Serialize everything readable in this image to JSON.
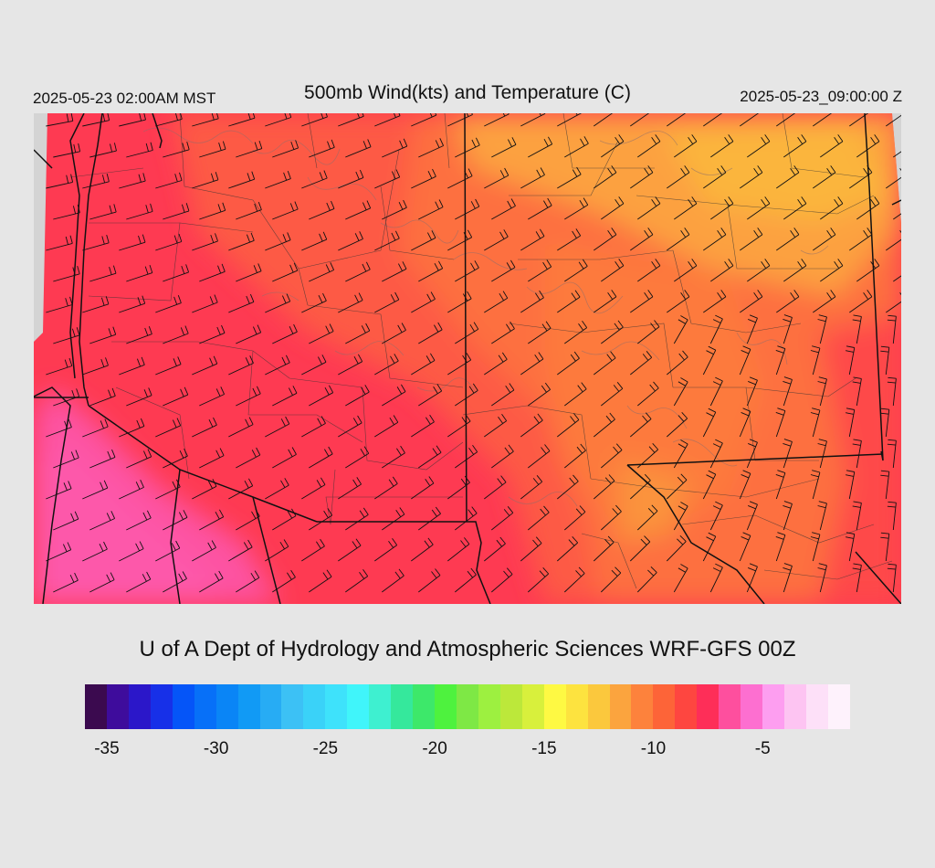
{
  "header": {
    "local_time": "2025-05-23 02:00AM MST",
    "title": "500mb Wind(kts) and Temperature (C)",
    "utc_time": "2025-05-23_09:00:00 Z"
  },
  "footer": {
    "credit": "U of A Dept of Hydrology and Atmospheric Sciences WRF-GFS 00Z"
  },
  "colorbar": {
    "colors": [
      "#3b0a4f",
      "#3e0c9c",
      "#2b17c9",
      "#1730e8",
      "#0555f8",
      "#0770f8",
      "#0a85f6",
      "#119af5",
      "#27acf4",
      "#3cc1f5",
      "#3ad2f8",
      "#3ee2fb",
      "#40f5fa",
      "#3ef0d0",
      "#35e89c",
      "#3de86a",
      "#4ef23e",
      "#7ee845",
      "#9df040",
      "#bce83a",
      "#d8f03c",
      "#fef943",
      "#fde33f",
      "#fbc83d",
      "#fba43e",
      "#fd823c",
      "#fd6438",
      "#fe4640",
      "#fe2e58",
      "#fe4f9e",
      "#fd6fd0",
      "#fd9ef0",
      "#fdc4f2",
      "#fde0f8",
      "#fef2fc"
    ],
    "labels": [
      "-35",
      "-30",
      "-25",
      "-20",
      "-15",
      "-10",
      "-5"
    ],
    "label_values": [
      -35,
      -30,
      -25,
      -20,
      -15,
      -10,
      -5
    ],
    "min": -36,
    "max": -1
  },
  "map": {
    "land_colors": {
      "pink": "#fd55a5",
      "red": "#fe3456",
      "orange_red": "#fd5a45",
      "orange": "#fd7a3e",
      "yellow_orange": "#fca23f",
      "no_data": "#d4d4d4"
    }
  }
}
